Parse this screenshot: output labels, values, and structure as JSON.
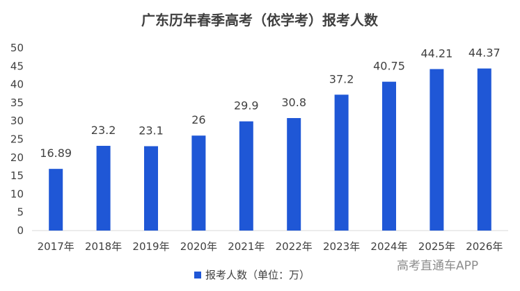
{
  "chart_data": {
    "type": "bar",
    "title": "广东历年春季高考（依学考）报考人数",
    "categories": [
      "2017年",
      "2018年",
      "2019年",
      "2020年",
      "2021年",
      "2022年",
      "2023年",
      "2024年",
      "2025年",
      "2026年"
    ],
    "series": [
      {
        "name": "报考人数（单位：万）",
        "values": [
          16.89,
          23.2,
          23.1,
          26,
          29.9,
          30.8,
          37.2,
          40.75,
          44.21,
          44.37
        ],
        "labels": [
          "16.89",
          "23.2",
          "23.1",
          "26",
          "29.9",
          "30.8",
          "37.2",
          "40.75",
          "44.21",
          "44.37"
        ]
      }
    ],
    "ylim": [
      0,
      50
    ],
    "yticks": [
      "0",
      "5",
      "10",
      "15",
      "20",
      "25",
      "30",
      "35",
      "40",
      "45",
      "50"
    ],
    "legend_position": "bottom",
    "grid": false
  },
  "colors": {
    "bar": "#1f57d6",
    "text": "#404040",
    "axis": "#d9d9d9"
  },
  "watermark": "高考直通车APP"
}
